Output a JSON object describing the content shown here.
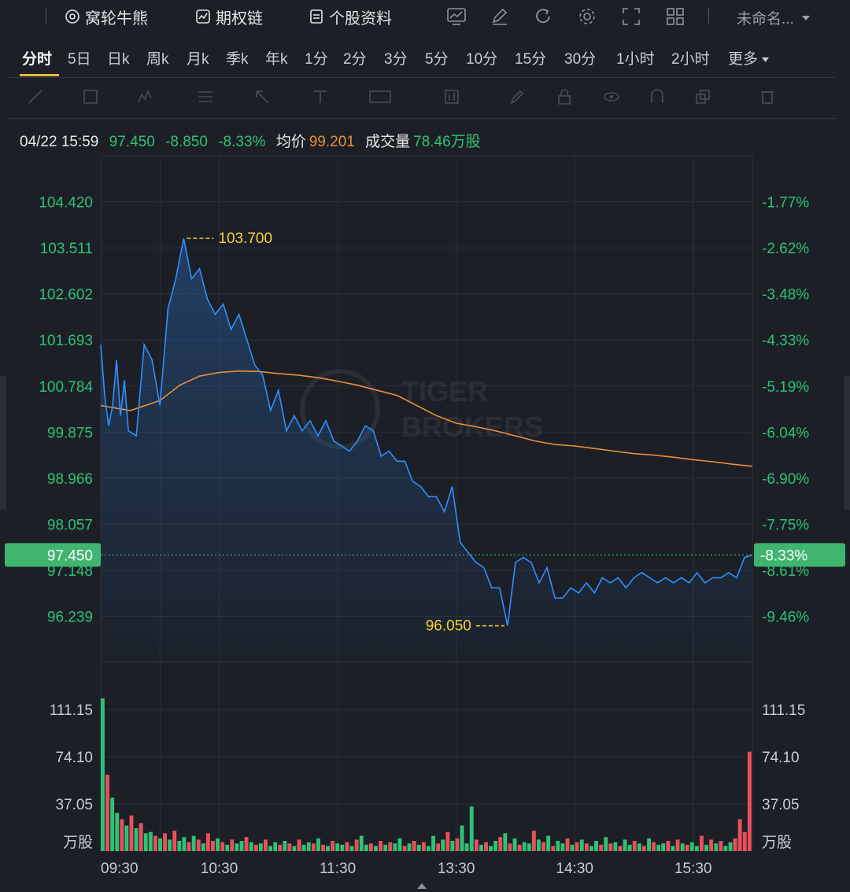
{
  "toolbar": {
    "items": [
      {
        "label": "窝轮牛熊",
        "icon": "warrant-icon"
      },
      {
        "label": "期权链",
        "icon": "option-chain-icon"
      },
      {
        "label": "个股资料",
        "icon": "document-icon"
      }
    ],
    "icons": [
      "chart-style-icon",
      "draw-icon",
      "refresh-icon",
      "settings-icon",
      "fullscreen-icon",
      "layout-grid-icon"
    ],
    "layout_name": "未命名..."
  },
  "periods": [
    "分时",
    "5日",
    "日k",
    "周k",
    "月k",
    "季k",
    "年k",
    "1分",
    "2分",
    "3分",
    "5分",
    "10分",
    "15分",
    "30分",
    "1小时",
    "2小时",
    "更多"
  ],
  "active_period": "分时",
  "quote": {
    "datetime": "04/22 15:59",
    "price": "97.450",
    "change": "-8.850",
    "change_pct": "-8.33%",
    "avg_label": "均价",
    "avg_value": "99.201",
    "volume_label": "成交量",
    "volume_value": "78.46万股"
  },
  "colors": {
    "up": "#2ec276",
    "down": "#e8505b",
    "price_line": "#2f8fff",
    "avg_line": "#e8903a",
    "annotation": "#f1d23e"
  },
  "chart_data": {
    "type": "line",
    "price_axis": {
      "ticks": [
        "104.420",
        "103.511",
        "102.602",
        "101.693",
        "100.784",
        "99.875",
        "98.966",
        "98.057",
        "97.148",
        "96.239"
      ],
      "range": [
        95.33,
        105.33
      ]
    },
    "pct_axis": {
      "ticks": [
        "-1.77%",
        "-2.62%",
        "-3.48%",
        "-4.33%",
        "-5.19%",
        "-6.04%",
        "-6.90%",
        "-7.75%",
        "-8.61%",
        "-9.46%"
      ]
    },
    "time_ticks": [
      "09:30",
      "10:30",
      "11:30",
      "13:30",
      "14:30",
      "15:30"
    ],
    "volume_axis": {
      "ticks": [
        "111.15",
        "74.10",
        "37.05"
      ],
      "unit": "万股",
      "range": [
        0,
        148.2
      ]
    },
    "current_price_label": "97.450",
    "current_pct_label": "-8.33%",
    "high_label": "103.700",
    "low_label": "96.050",
    "series": [
      {
        "name": "price",
        "x_minutes": [
          0,
          2,
          4,
          6,
          8,
          10,
          12,
          14,
          18,
          22,
          26,
          30,
          34,
          38,
          42,
          46,
          50,
          54,
          58,
          62,
          66,
          70,
          74,
          78,
          82,
          86,
          90,
          94,
          98,
          102,
          106,
          110,
          114,
          118,
          122,
          126,
          130,
          134,
          138,
          142,
          146,
          150,
          154,
          158,
          162,
          166,
          170,
          174,
          178,
          182,
          186,
          190,
          194,
          198,
          202,
          206,
          210,
          214,
          218,
          222,
          226,
          230,
          234,
          238,
          242,
          246,
          250,
          254,
          258,
          262,
          266,
          270,
          274,
          278,
          282,
          286,
          290,
          294,
          298,
          302,
          306,
          310,
          314,
          318,
          322,
          326,
          330
        ],
        "values": [
          101.6,
          100.6,
          100.0,
          100.4,
          101.3,
          100.2,
          100.9,
          99.9,
          99.8,
          101.6,
          101.3,
          100.4,
          102.3,
          102.9,
          103.7,
          102.9,
          103.1,
          102.5,
          102.2,
          102.4,
          101.9,
          102.2,
          101.7,
          101.2,
          101.0,
          100.3,
          100.7,
          99.9,
          100.2,
          99.9,
          100.1,
          99.8,
          100.1,
          99.7,
          99.6,
          99.5,
          99.7,
          100.0,
          99.9,
          99.4,
          99.5,
          99.3,
          99.3,
          98.9,
          98.8,
          98.6,
          98.6,
          98.3,
          98.8,
          97.7,
          97.5,
          97.3,
          97.2,
          96.8,
          96.8,
          96.05,
          97.3,
          97.4,
          97.3,
          96.9,
          97.2,
          96.6,
          96.6,
          96.8,
          96.7,
          96.9,
          96.7,
          97.0,
          96.9,
          97.0,
          96.8,
          97.0,
          97.1,
          97.0,
          96.9,
          97.0,
          96.9,
          97.0,
          96.9,
          97.1,
          96.9,
          97.0,
          97.0,
          97.1,
          97.0,
          97.4,
          97.45
        ]
      },
      {
        "name": "average",
        "x_minutes": [
          0,
          15,
          30,
          40,
          50,
          60,
          70,
          80,
          90,
          100,
          110,
          120,
          130,
          140,
          150,
          160,
          170,
          180,
          190,
          200,
          210,
          220,
          230,
          240,
          250,
          260,
          270,
          280,
          290,
          300,
          310,
          320,
          330
        ],
        "values": [
          100.4,
          100.3,
          100.5,
          100.8,
          100.98,
          101.05,
          101.08,
          101.07,
          101.03,
          101.0,
          100.95,
          100.88,
          100.8,
          100.7,
          100.6,
          100.4,
          100.2,
          100.05,
          99.98,
          99.9,
          99.8,
          99.7,
          99.63,
          99.6,
          99.55,
          99.5,
          99.45,
          99.42,
          99.38,
          99.33,
          99.29,
          99.24,
          99.2
        ]
      }
    ],
    "volume_values": [
      120,
      60,
      42,
      30,
      25,
      20,
      28,
      18,
      22,
      14,
      15,
      12,
      10,
      14,
      9,
      16,
      8,
      11,
      7,
      12,
      9,
      6,
      14,
      8,
      10,
      7,
      5,
      9,
      6,
      8,
      11,
      7,
      5,
      6,
      9,
      4,
      7,
      5,
      8,
      6,
      4,
      9,
      5,
      7,
      6,
      10,
      5,
      4,
      8,
      6,
      5,
      7,
      4,
      9,
      12,
      5,
      6,
      4,
      8,
      5,
      7,
      6,
      10,
      4,
      6,
      8,
      5,
      7,
      4,
      12,
      6,
      9,
      15,
      8,
      10,
      20,
      6,
      35,
      9,
      5,
      7,
      4,
      8,
      11,
      14,
      6,
      10,
      5,
      7,
      6,
      16,
      9,
      7,
      12,
      4,
      8,
      6,
      10,
      5,
      7,
      9,
      6,
      4,
      8,
      5,
      11,
      6,
      7,
      4,
      9,
      5,
      8,
      6,
      4,
      10,
      7,
      5,
      6,
      8,
      4,
      9,
      6,
      5,
      7,
      4,
      12,
      5,
      9,
      6,
      8,
      4,
      7,
      10,
      25,
      15,
      78
    ],
    "volume_up": [
      1,
      0,
      1,
      1,
      0,
      1,
      0,
      1,
      0,
      1,
      1,
      0,
      1,
      0,
      1,
      0,
      1,
      1,
      0,
      1,
      0,
      1,
      0,
      0,
      1,
      0,
      1,
      0,
      1,
      1,
      0,
      1,
      0,
      1,
      0,
      1,
      1,
      0,
      1,
      0,
      1,
      0,
      1,
      1,
      0,
      1,
      0,
      1,
      0,
      1,
      1,
      0,
      1,
      0,
      1,
      1,
      0,
      1,
      0,
      1,
      0,
      1,
      1,
      0,
      1,
      0,
      1,
      0,
      1,
      1,
      0,
      1,
      0,
      1,
      0,
      1,
      1,
      1,
      0,
      1,
      0,
      1,
      1,
      0,
      1,
      0,
      1,
      0,
      1,
      1,
      0,
      1,
      0,
      1,
      0,
      1,
      1,
      0,
      1,
      0,
      1,
      0,
      1,
      1,
      0,
      1,
      0,
      1,
      0,
      1,
      1,
      0,
      1,
      0,
      1,
      0,
      1,
      1,
      0,
      1,
      0,
      1,
      0,
      1,
      1,
      0,
      1,
      0,
      1,
      0,
      1,
      1,
      0,
      0,
      0,
      0
    ]
  }
}
